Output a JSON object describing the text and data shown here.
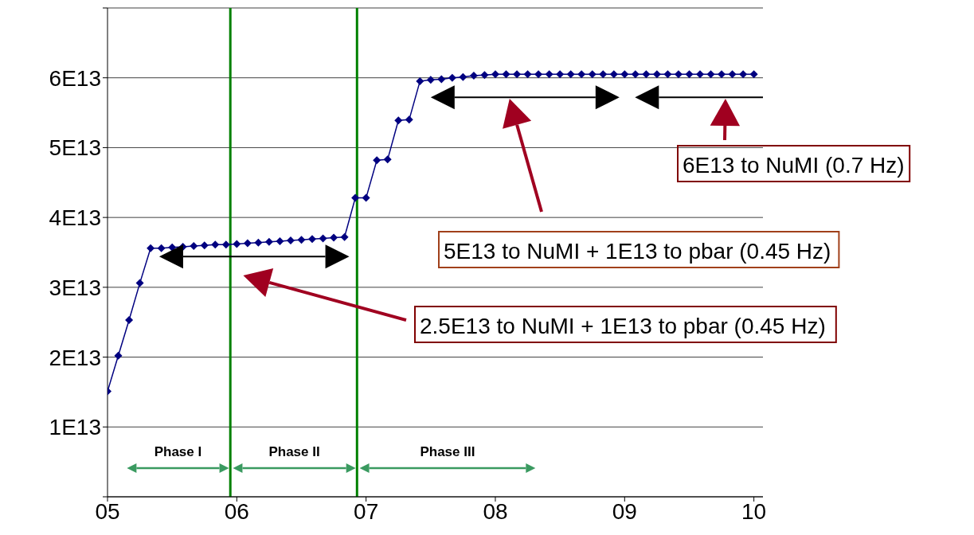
{
  "chart_data": {
    "type": "line",
    "x": [
      5,
      5.0833,
      5.1667,
      5.25,
      5.3333,
      5.4167,
      5.5,
      5.5833,
      5.6667,
      5.75,
      5.8333,
      5.9167,
      6,
      6.0833,
      6.1667,
      6.25,
      6.3333,
      6.4167,
      6.5,
      6.5833,
      6.6667,
      6.75,
      6.8333,
      6.9167,
      7,
      7.0833,
      7.1667,
      7.25,
      7.3333,
      7.4167,
      7.5,
      7.5833,
      7.6667,
      7.75,
      7.8333,
      7.9167,
      8,
      8.0833,
      8.1667,
      8.25,
      8.3333,
      8.4167,
      8.5,
      8.5833,
      8.6667,
      8.75,
      8.8333,
      8.9167,
      9,
      9.0833,
      9.1667,
      9.25,
      9.3333,
      9.4167,
      9.5,
      9.5833,
      9.6667,
      9.75,
      9.8333,
      9.9167,
      10
    ],
    "series": [
      {
        "color": "#000080",
        "values": [
          15100000000000.0,
          20200000000000.0,
          25300000000000.0,
          30600000000000.0,
          35600000000000.0,
          35600000000000.0,
          35700000000000.0,
          35800000000000.0,
          35900000000000.0,
          36000000000000.0,
          36100000000000.0,
          36100000000000.0,
          36200000000000.0,
          36300000000000.0,
          36400000000000.0,
          36500000000000.0,
          36600000000000.0,
          36700000000000.0,
          36800000000000.0,
          36900000000000.0,
          37000000000000.0,
          37100000000000.0,
          37200000000000.0,
          42800000000000.0,
          42800000000000.0,
          48200000000000.0,
          48300000000000.0,
          53900000000000.0,
          54000000000000.0,
          59500000000000.0,
          59700000000000.0,
          59800000000000.0,
          60000000000000.0,
          60100000000000.0,
          60300000000000.0,
          60400000000000.0,
          60500000000000.0,
          60500000000000.0,
          60500000000000.0,
          60500000000000.0,
          60500000000000.0,
          60500000000000.0,
          60500000000000.0,
          60500000000000.0,
          60500000000000.0,
          60500000000000.0,
          60500000000000.0,
          60500000000000.0,
          60500000000000.0,
          60500000000000.0,
          60500000000000.0,
          60500000000000.0,
          60500000000000.0,
          60500000000000.0,
          60500000000000.0,
          60500000000000.0,
          60500000000000.0,
          60500000000000.0,
          60500000000000.0,
          60500000000000.0,
          60500000000000.0
        ]
      }
    ],
    "xlim": [
      5,
      10.07
    ],
    "xticks": [
      {
        "value": 5,
        "label": "05"
      },
      {
        "value": 6,
        "label": "06"
      },
      {
        "value": 7,
        "label": "07"
      },
      {
        "value": 8,
        "label": "08"
      },
      {
        "value": 9,
        "label": "09"
      },
      {
        "value": 10,
        "label": "10"
      }
    ],
    "ylim": [
      0,
      70000000000000.0
    ],
    "yticks": [
      {
        "value": 0,
        "label": null
      },
      {
        "value": 10000000000000.0,
        "label": "1E13"
      },
      {
        "value": 20000000000000.0,
        "label": "2E13"
      },
      {
        "value": 30000000000000.0,
        "label": "3E13"
      },
      {
        "value": 40000000000000.0,
        "label": "4E13"
      },
      {
        "value": 50000000000000.0,
        "label": "5E13"
      },
      {
        "value": 60000000000000.0,
        "label": "6E13"
      },
      {
        "value": 70000000000000.0,
        "label": null
      }
    ],
    "grid": "y",
    "marker": "diamond",
    "line_style": "solid",
    "legend": false,
    "ref_lines": [
      {
        "axis": "x",
        "value": 5.95,
        "color": "#008000"
      },
      {
        "axis": "x",
        "value": 6.93,
        "color": "#008000"
      }
    ],
    "annotations": [
      "6E13 to NuMI (0.7 Hz)",
      "5E13 to NuMI + 1E13 to pbar (0.45 Hz)",
      "2.5E13 to NuMI + 1E13 to pbar (0.45 Hz)",
      "Phase I",
      "Phase II",
      "Phase III"
    ]
  }
}
